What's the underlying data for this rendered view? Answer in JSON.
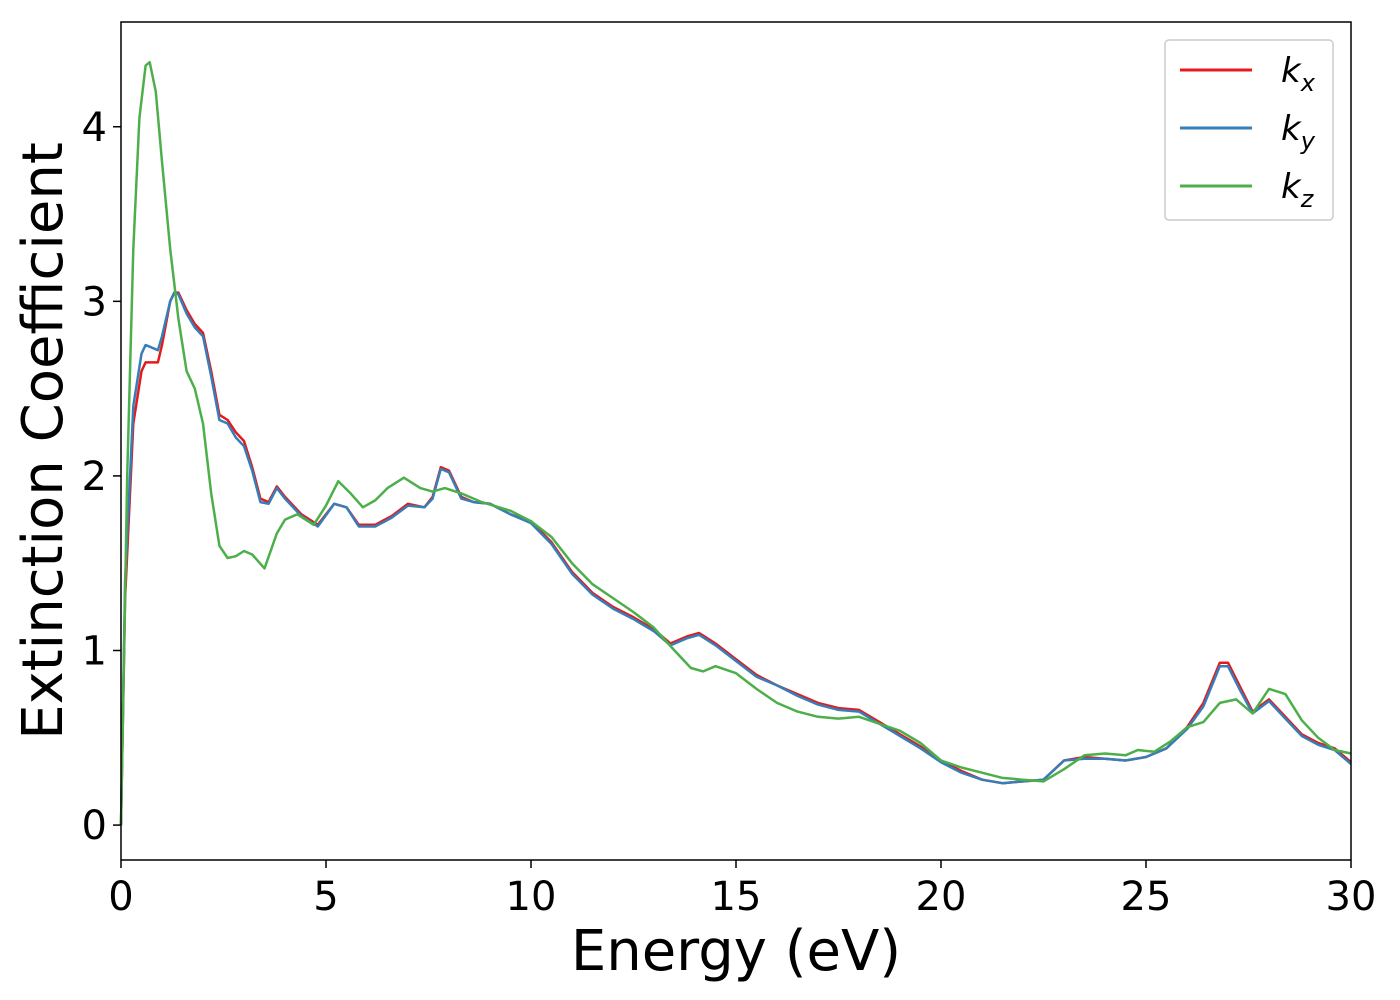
{
  "chart_data": {
    "type": "line",
    "xlabel": "Energy (eV)",
    "ylabel": "Extinction Coefficient",
    "xlim": [
      0,
      30
    ],
    "ylim": [
      -0.2,
      4.6
    ],
    "xticks": [
      0,
      5,
      10,
      15,
      20,
      25,
      30
    ],
    "yticks": [
      0,
      1,
      2,
      3,
      4
    ],
    "grid": false,
    "legend_position": "top-right",
    "series": [
      {
        "name": "k_x",
        "legend_main": "k",
        "legend_sub": "x",
        "color": "#e41a1c",
        "x": [
          0,
          0.1,
          0.3,
          0.5,
          0.6,
          0.7,
          0.9,
          1.0,
          1.2,
          1.3,
          1.4,
          1.6,
          1.8,
          2.0,
          2.2,
          2.4,
          2.6,
          2.8,
          3.0,
          3.2,
          3.4,
          3.6,
          3.8,
          4.0,
          4.4,
          4.8,
          5.2,
          5.5,
          5.8,
          6.2,
          6.6,
          7.0,
          7.4,
          7.6,
          7.8,
          8.0,
          8.3,
          8.6,
          9.0,
          9.5,
          10.0,
          10.5,
          11.0,
          11.5,
          12.0,
          12.5,
          13.0,
          13.4,
          13.8,
          14.1,
          14.5,
          15.0,
          15.5,
          16.0,
          16.5,
          17.0,
          17.5,
          18.0,
          18.5,
          19.0,
          19.5,
          20.0,
          20.5,
          21.0,
          21.5,
          22.0,
          22.5,
          23.0,
          23.5,
          24.0,
          24.5,
          25.0,
          25.5,
          26.0,
          26.4,
          26.8,
          27.0,
          27.3,
          27.6,
          28.0,
          28.4,
          28.8,
          29.2,
          29.6,
          30.0
        ],
        "values": [
          0.0,
          1.3,
          2.3,
          2.6,
          2.65,
          2.65,
          2.65,
          2.75,
          3.0,
          3.05,
          3.05,
          2.95,
          2.87,
          2.82,
          2.6,
          2.35,
          2.32,
          2.25,
          2.2,
          2.05,
          1.87,
          1.85,
          1.94,
          1.88,
          1.78,
          1.72,
          1.84,
          1.82,
          1.72,
          1.72,
          1.77,
          1.84,
          1.82,
          1.88,
          2.05,
          2.03,
          1.88,
          1.85,
          1.84,
          1.78,
          1.74,
          1.62,
          1.45,
          1.33,
          1.25,
          1.19,
          1.12,
          1.04,
          1.08,
          1.1,
          1.04,
          0.95,
          0.86,
          0.8,
          0.75,
          0.7,
          0.67,
          0.66,
          0.59,
          0.52,
          0.45,
          0.37,
          0.31,
          0.26,
          0.24,
          0.25,
          0.26,
          0.37,
          0.39,
          0.38,
          0.37,
          0.39,
          0.44,
          0.56,
          0.7,
          0.93,
          0.93,
          0.79,
          0.65,
          0.72,
          0.62,
          0.52,
          0.47,
          0.44,
          0.36
        ]
      },
      {
        "name": "k_y",
        "legend_main": "k",
        "legend_sub": "y",
        "color": "#377eb8",
        "x": [
          0,
          0.1,
          0.3,
          0.5,
          0.6,
          0.7,
          0.9,
          1.0,
          1.2,
          1.3,
          1.4,
          1.6,
          1.8,
          2.0,
          2.2,
          2.4,
          2.6,
          2.8,
          3.0,
          3.2,
          3.4,
          3.6,
          3.8,
          4.0,
          4.4,
          4.8,
          5.2,
          5.5,
          5.8,
          6.2,
          6.6,
          7.0,
          7.4,
          7.6,
          7.8,
          8.0,
          8.3,
          8.6,
          9.0,
          9.5,
          10.0,
          10.5,
          11.0,
          11.5,
          12.0,
          12.5,
          13.0,
          13.4,
          13.8,
          14.1,
          14.5,
          15.0,
          15.5,
          16.0,
          16.5,
          17.0,
          17.5,
          18.0,
          18.5,
          19.0,
          19.5,
          20.0,
          20.5,
          21.0,
          21.5,
          22.0,
          22.5,
          23.0,
          23.5,
          24.0,
          24.5,
          25.0,
          25.5,
          26.0,
          26.4,
          26.8,
          27.0,
          27.3,
          27.6,
          28.0,
          28.4,
          28.8,
          29.2,
          29.6,
          30.0
        ],
        "values": [
          0.0,
          1.4,
          2.4,
          2.7,
          2.75,
          2.74,
          2.72,
          2.8,
          3.0,
          3.05,
          3.04,
          2.93,
          2.85,
          2.8,
          2.57,
          2.32,
          2.3,
          2.22,
          2.17,
          2.03,
          1.85,
          1.84,
          1.93,
          1.87,
          1.77,
          1.71,
          1.84,
          1.82,
          1.71,
          1.71,
          1.76,
          1.83,
          1.82,
          1.87,
          2.04,
          2.02,
          1.87,
          1.85,
          1.84,
          1.78,
          1.73,
          1.61,
          1.44,
          1.32,
          1.24,
          1.18,
          1.11,
          1.03,
          1.07,
          1.09,
          1.03,
          0.94,
          0.85,
          0.8,
          0.74,
          0.69,
          0.66,
          0.65,
          0.58,
          0.51,
          0.44,
          0.36,
          0.3,
          0.26,
          0.24,
          0.25,
          0.26,
          0.37,
          0.38,
          0.38,
          0.37,
          0.39,
          0.44,
          0.55,
          0.68,
          0.91,
          0.91,
          0.77,
          0.64,
          0.71,
          0.61,
          0.51,
          0.46,
          0.43,
          0.35
        ]
      },
      {
        "name": "k_z",
        "legend_main": "k",
        "legend_sub": "z",
        "color": "#4daf4a",
        "x": [
          0,
          0.15,
          0.3,
          0.45,
          0.6,
          0.7,
          0.85,
          1.0,
          1.2,
          1.4,
          1.6,
          1.8,
          2.0,
          2.2,
          2.4,
          2.6,
          2.8,
          3.0,
          3.2,
          3.5,
          3.8,
          4.0,
          4.3,
          4.7,
          5.0,
          5.3,
          5.6,
          5.9,
          6.2,
          6.5,
          6.9,
          7.3,
          7.6,
          7.9,
          8.3,
          8.8,
          9.5,
          10.0,
          10.5,
          11.0,
          11.5,
          12.0,
          12.5,
          13.0,
          13.5,
          13.9,
          14.2,
          14.5,
          15.0,
          15.5,
          16.0,
          16.5,
          17.0,
          17.5,
          18.0,
          18.5,
          19.0,
          19.5,
          20.0,
          20.5,
          21.0,
          21.5,
          22.0,
          22.5,
          23.0,
          23.5,
          24.0,
          24.5,
          24.8,
          25.2,
          25.6,
          26.0,
          26.4,
          26.8,
          27.2,
          27.6,
          28.0,
          28.4,
          28.8,
          29.2,
          29.6,
          30.0
        ],
        "values": [
          0.0,
          2.0,
          3.3,
          4.05,
          4.35,
          4.37,
          4.2,
          3.8,
          3.3,
          2.9,
          2.6,
          2.5,
          2.3,
          1.9,
          1.6,
          1.53,
          1.54,
          1.57,
          1.55,
          1.47,
          1.67,
          1.75,
          1.78,
          1.72,
          1.83,
          1.97,
          1.9,
          1.82,
          1.86,
          1.93,
          1.99,
          1.93,
          1.91,
          1.93,
          1.9,
          1.85,
          1.8,
          1.74,
          1.65,
          1.5,
          1.38,
          1.3,
          1.22,
          1.13,
          1.0,
          0.9,
          0.88,
          0.91,
          0.87,
          0.78,
          0.7,
          0.65,
          0.62,
          0.61,
          0.62,
          0.58,
          0.54,
          0.47,
          0.37,
          0.33,
          0.3,
          0.27,
          0.26,
          0.25,
          0.32,
          0.4,
          0.41,
          0.4,
          0.43,
          0.42,
          0.48,
          0.56,
          0.59,
          0.7,
          0.72,
          0.64,
          0.78,
          0.75,
          0.6,
          0.5,
          0.43,
          0.41
        ]
      }
    ]
  }
}
